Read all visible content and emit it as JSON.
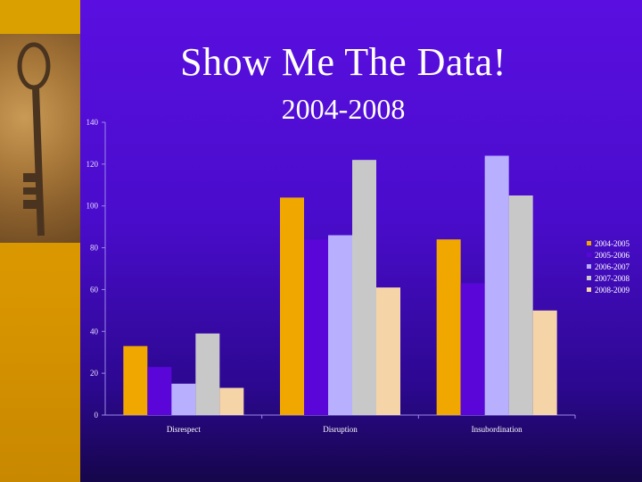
{
  "slide": {
    "title": "Show Me The Data!",
    "subtitle": "2004-2008"
  },
  "chart_data": {
    "type": "bar",
    "title": "",
    "xlabel": "",
    "ylabel": "",
    "ylim": [
      0,
      140
    ],
    "yticks": [
      0,
      20,
      40,
      60,
      80,
      100,
      120,
      140
    ],
    "categories": [
      "Disrespect",
      "Disruption",
      "Insubordination"
    ],
    "series": [
      {
        "name": "2004-2005",
        "color": "#f0a800",
        "values": [
          33,
          104,
          84
        ]
      },
      {
        "name": "2005-2006",
        "color": "#5a06d8",
        "values": [
          23,
          84,
          63
        ]
      },
      {
        "name": "2006-2007",
        "color": "#b8b0ff",
        "values": [
          15,
          86,
          124
        ]
      },
      {
        "name": "2007-2008",
        "color": "#c8c8c8",
        "values": [
          39,
          122,
          105
        ]
      },
      {
        "name": "2008-2009",
        "color": "#f5d5a8",
        "values": [
          13,
          61,
          50
        ]
      }
    ],
    "legend_position": "right",
    "grid": false
  }
}
